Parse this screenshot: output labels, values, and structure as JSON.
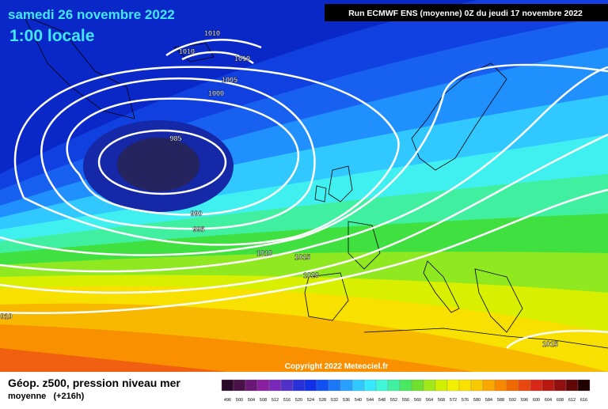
{
  "header": {
    "date": "samedi 26 novembre 2022",
    "time": "1:00 locale",
    "run": "Run ECMWF ENS (moyenne) 0Z du jeudi 17 novembre 2022"
  },
  "isobar_labels": [
    1010,
    1010,
    1010,
    1005,
    1000,
    985,
    990,
    995,
    1010,
    1015,
    1020,
    1015,
    "010"
  ],
  "copyright": "Copyright 2022 Meteociel.fr",
  "footer": {
    "title": "Géop. z500, pression niveau mer",
    "subtitle": "moyenne   (+216h)"
  },
  "scale": {
    "values": [
      496,
      500,
      504,
      508,
      512,
      516,
      520,
      524,
      528,
      532,
      536,
      540,
      544,
      548,
      552,
      556,
      560,
      564,
      568,
      572,
      576,
      580,
      584,
      588,
      592,
      596,
      600,
      604,
      608,
      612,
      616
    ],
    "colors": [
      "#2a0a2a",
      "#4a1048",
      "#6a1878",
      "#8a20a0",
      "#7a28b8",
      "#5030c8",
      "#2830d8",
      "#1030e8",
      "#1050f0",
      "#1a78f8",
      "#28a0ff",
      "#30c8ff",
      "#38e8ff",
      "#40f8d8",
      "#40f0a0",
      "#48e860",
      "#70e030",
      "#a0e818",
      "#d0f000",
      "#f0f000",
      "#f8e000",
      "#f8c800",
      "#f8a800",
      "#f88800",
      "#f06800",
      "#e84810",
      "#d82818",
      "#b81810",
      "#901010",
      "#600808",
      "#200000"
    ]
  }
}
